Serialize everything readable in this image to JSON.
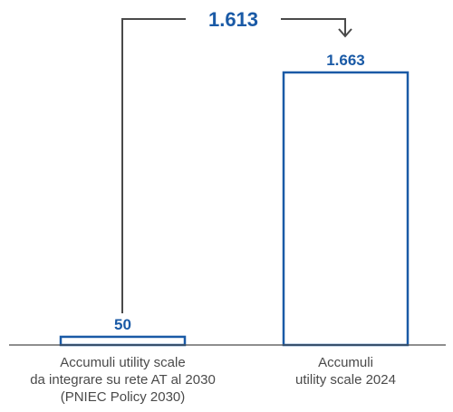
{
  "chart_data": {
    "type": "bar",
    "categories": [
      [
        "Accumuli utility scale",
        "da integrare su rete AT al 2030",
        "(PNIEC Policy 2030)"
      ],
      [
        "Accumuli",
        "utility scale 2024"
      ]
    ],
    "values": [
      50,
      1663
    ],
    "value_labels": [
      "50",
      "1.663"
    ],
    "difference": 1613,
    "difference_label": "1.613",
    "title": "",
    "xlabel": "",
    "ylabel": "",
    "ylim": [
      0,
      1663
    ],
    "grid": false,
    "legend": "none"
  },
  "colors": {
    "bar_stroke": "#1a5aa6",
    "value_text": "#1a5aa6",
    "connector": "#4a4a4a",
    "axis": "#4a4a4a",
    "category_text": "#4a4a4a"
  }
}
